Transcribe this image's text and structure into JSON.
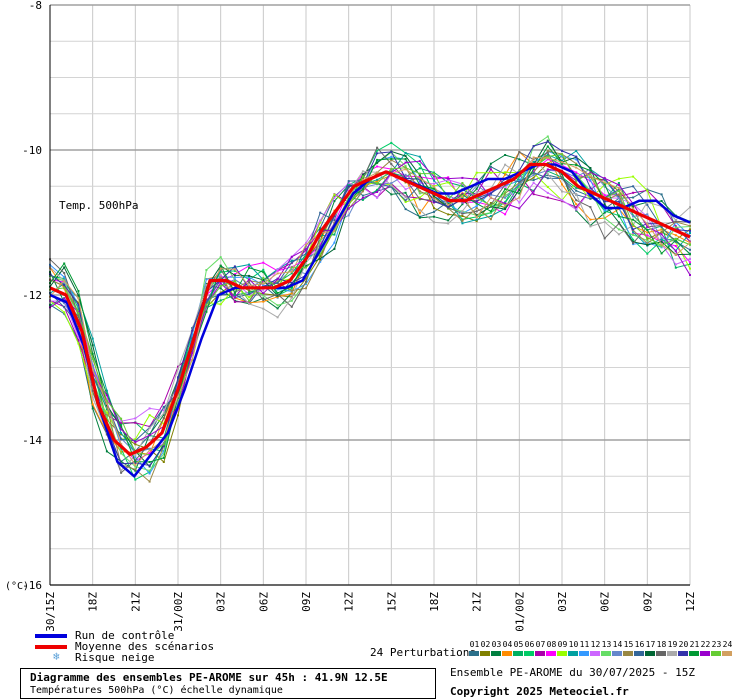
{
  "chart_data": {
    "type": "line",
    "title": "Diagramme des ensembles PE-AROME sur 45h : 41.9N 12.5E",
    "subtitle": "Températures 500hPa (°C) échelle dynamique",
    "inner_label": "Temp. 500hPa",
    "ylabel": "(°C)",
    "ylim": [
      -16,
      -8
    ],
    "yticks": [
      -16,
      -14,
      -12,
      -10,
      -8
    ],
    "xlim": [
      0,
      45
    ],
    "xticks": [
      {
        "pos": 0,
        "label": "30/15Z"
      },
      {
        "pos": 3,
        "label": "18Z"
      },
      {
        "pos": 6,
        "label": "21Z"
      },
      {
        "pos": 9,
        "label": "31/00Z"
      },
      {
        "pos": 12,
        "label": "03Z"
      },
      {
        "pos": 15,
        "label": "06Z"
      },
      {
        "pos": 18,
        "label": "09Z"
      },
      {
        "pos": 21,
        "label": "12Z"
      },
      {
        "pos": 24,
        "label": "15Z"
      },
      {
        "pos": 27,
        "label": "18Z"
      },
      {
        "pos": 30,
        "label": "21Z"
      },
      {
        "pos": 33,
        "label": "01/00Z"
      },
      {
        "pos": 36,
        "label": "03Z"
      },
      {
        "pos": 39,
        "label": "06Z"
      },
      {
        "pos": 42,
        "label": "09Z"
      },
      {
        "pos": 45,
        "label": "12Z"
      }
    ],
    "grid": true,
    "series": [
      {
        "name": "Run de contrôle",
        "color": "#0000dd",
        "values": [
          -12.0,
          -12.1,
          -12.7,
          -13.6,
          -14.3,
          -14.5,
          -14.2,
          -13.9,
          -13.3,
          -12.6,
          -12.0,
          -11.9,
          -11.9,
          -11.9,
          -11.9,
          -11.8,
          -11.4,
          -11.0,
          -10.6,
          -10.4,
          -10.3,
          -10.4,
          -10.5,
          -10.6,
          -10.6,
          -10.5,
          -10.4,
          -10.4,
          -10.3,
          -10.2,
          -10.2,
          -10.3,
          -10.6,
          -10.8,
          -10.8,
          -10.7,
          -10.7,
          -10.9,
          -11.0
        ]
      },
      {
        "name": "Moyenne des scénarios",
        "color": "#ee0000",
        "values": [
          -11.9,
          -12.0,
          -12.5,
          -13.5,
          -14.0,
          -14.2,
          -14.1,
          -13.9,
          -13.3,
          -12.6,
          -11.8,
          -11.8,
          -11.9,
          -11.9,
          -11.9,
          -11.8,
          -11.5,
          -11.1,
          -10.8,
          -10.5,
          -10.4,
          -10.3,
          -10.4,
          -10.5,
          -10.6,
          -10.7,
          -10.7,
          -10.6,
          -10.5,
          -10.4,
          -10.2,
          -10.2,
          -10.3,
          -10.5,
          -10.6,
          -10.7,
          -10.8,
          -10.9,
          -11.0,
          -11.1,
          -11.2
        ]
      }
    ],
    "legend": [
      {
        "label": "Run de contrôle",
        "color": "#0000dd"
      },
      {
        "label": "Moyenne des scénarios",
        "color": "#ee0000"
      },
      {
        "label": "Risque neige",
        "icon": "snowflake-icon"
      }
    ],
    "perturbations_label": "24 Perturbations",
    "perturbations": [
      {
        "id": "01",
        "color": "#2a6f8a"
      },
      {
        "id": "02",
        "color": "#808000"
      },
      {
        "id": "03",
        "color": "#007f3f"
      },
      {
        "id": "04",
        "color": "#ff8c00"
      },
      {
        "id": "05",
        "color": "#00b060"
      },
      {
        "id": "06",
        "color": "#00cc66"
      },
      {
        "id": "07",
        "color": "#aa00aa"
      },
      {
        "id": "08",
        "color": "#ff00ff"
      },
      {
        "id": "09",
        "color": "#99ff00"
      },
      {
        "id": "10",
        "color": "#00a0a0"
      },
      {
        "id": "11",
        "color": "#3399ff"
      },
      {
        "id": "12",
        "color": "#cc66ff"
      },
      {
        "id": "13",
        "color": "#66dd66"
      },
      {
        "id": "14",
        "color": "#6688cc"
      },
      {
        "id": "15",
        "color": "#998844"
      },
      {
        "id": "16",
        "color": "#336699"
      },
      {
        "id": "17",
        "color": "#006633"
      },
      {
        "id": "18",
        "color": "#666666"
      },
      {
        "id": "19",
        "color": "#aaaaaa"
      },
      {
        "id": "20",
        "color": "#3333aa"
      },
      {
        "id": "21",
        "color": "#009933"
      },
      {
        "id": "22",
        "color": "#9900cc"
      },
      {
        "id": "23",
        "color": "#66cc33"
      },
      {
        "id": "24",
        "color": "#d2a060"
      }
    ]
  },
  "run_label": "Ensemble PE-AROME du 30/07/2025 - 15Z",
  "copyright": "Copyright 2025 Meteociel.fr"
}
